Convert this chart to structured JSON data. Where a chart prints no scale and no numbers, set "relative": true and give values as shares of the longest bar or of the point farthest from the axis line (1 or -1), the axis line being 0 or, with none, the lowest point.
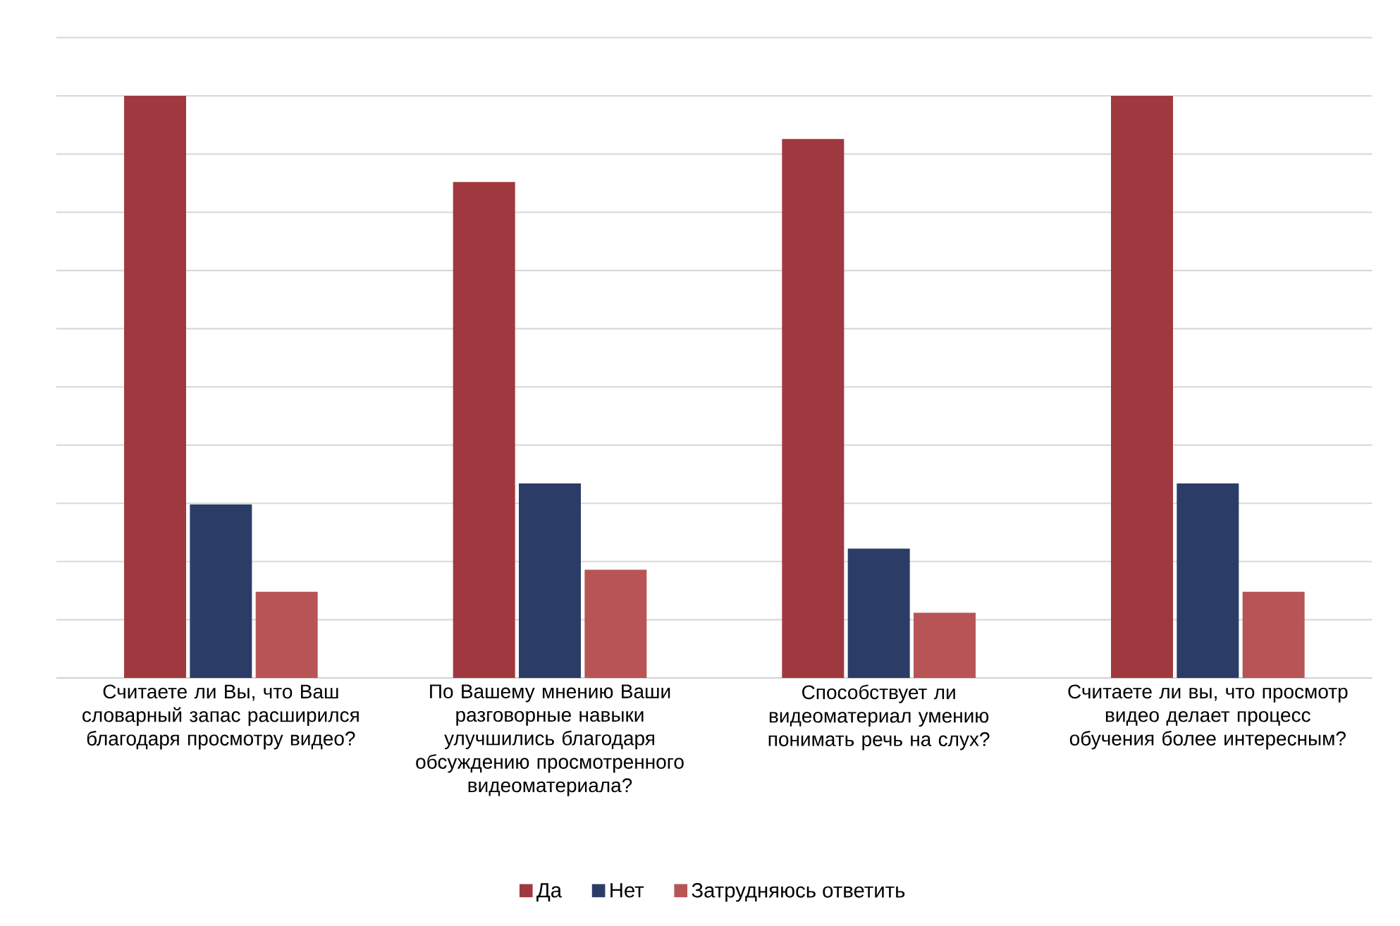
{
  "chart_data": {
    "type": "bar",
    "relative": true,
    "grid": "y",
    "legend": "bottom",
    "categories": [
      "Считаете ли Вы, что Ваш словарный запас расширился благодаря просмотру видео?",
      "По Вашему мнению Ваши разговорные навыки улучшились благодаря обсуждению просмотренного видеоматериала?",
      "Способствует ли видеоматериал умению понимать речь на слух?",
      "Считаете ли вы, что просмотр видео делает процесс обучения более интересным?"
    ],
    "series": [
      {
        "name": "Да",
        "color": "#a0393f",
        "values": [
          1,
          0.852,
          0.926,
          1
        ]
      },
      {
        "name": "Нет",
        "color": "#2b3d67",
        "values": [
          0.298,
          0.334,
          0.222,
          0.334
        ]
      },
      {
        "name": "Затрудняюсь ответить",
        "color": "#b85456",
        "values": [
          0.148,
          0.186,
          0.112,
          0.148
        ]
      }
    ]
  }
}
